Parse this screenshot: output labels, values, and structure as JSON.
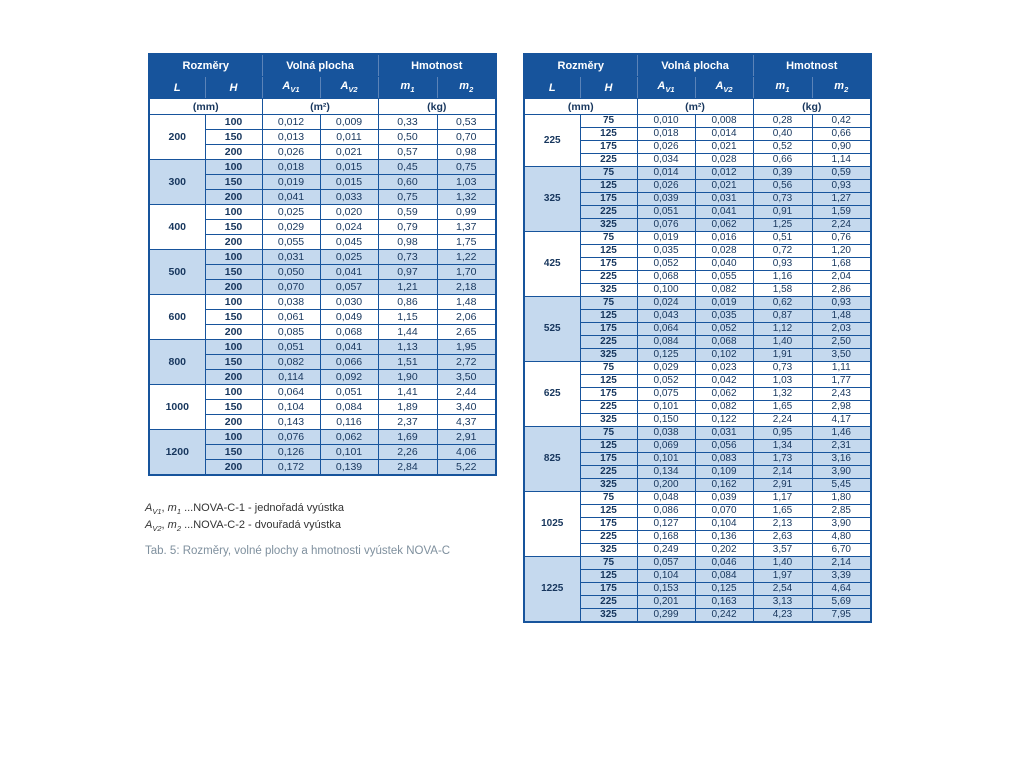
{
  "colors": {
    "header_bg": "#17549c",
    "header_text": "#ffffff",
    "alt_row_bg": "#c5d9ee",
    "data_text": "#17365d",
    "border": "#17549c"
  },
  "header": {
    "groups": [
      "Rozměry",
      "Volná plocha",
      "Hmotnost"
    ],
    "columns": [
      {
        "base": "L",
        "sub": ""
      },
      {
        "base": "H",
        "sub": ""
      },
      {
        "base": "A",
        "sub": "V1"
      },
      {
        "base": "A",
        "sub": "V2"
      },
      {
        "base": "m",
        "sub": "1"
      },
      {
        "base": "m",
        "sub": "2"
      }
    ],
    "units": [
      "(mm)",
      "(m²)",
      "(kg)"
    ]
  },
  "left_table": {
    "groups": [
      {
        "L": "200",
        "rows": [
          [
            "100",
            "0,012",
            "0,009",
            "0,33",
            "0,53"
          ],
          [
            "150",
            "0,013",
            "0,011",
            "0,50",
            "0,70"
          ],
          [
            "200",
            "0,026",
            "0,021",
            "0,57",
            "0,98"
          ]
        ]
      },
      {
        "L": "300",
        "rows": [
          [
            "100",
            "0,018",
            "0,015",
            "0,45",
            "0,75"
          ],
          [
            "150",
            "0,019",
            "0,015",
            "0,60",
            "1,03"
          ],
          [
            "200",
            "0,041",
            "0,033",
            "0,75",
            "1,32"
          ]
        ]
      },
      {
        "L": "400",
        "rows": [
          [
            "100",
            "0,025",
            "0,020",
            "0,59",
            "0,99"
          ],
          [
            "150",
            "0,029",
            "0,024",
            "0,79",
            "1,37"
          ],
          [
            "200",
            "0,055",
            "0,045",
            "0,98",
            "1,75"
          ]
        ]
      },
      {
        "L": "500",
        "rows": [
          [
            "100",
            "0,031",
            "0,025",
            "0,73",
            "1,22"
          ],
          [
            "150",
            "0,050",
            "0,041",
            "0,97",
            "1,70"
          ],
          [
            "200",
            "0,070",
            "0,057",
            "1,21",
            "2,18"
          ]
        ]
      },
      {
        "L": "600",
        "rows": [
          [
            "100",
            "0,038",
            "0,030",
            "0,86",
            "1,48"
          ],
          [
            "150",
            "0,061",
            "0,049",
            "1,15",
            "2,06"
          ],
          [
            "200",
            "0,085",
            "0,068",
            "1,44",
            "2,65"
          ]
        ]
      },
      {
        "L": "800",
        "rows": [
          [
            "100",
            "0,051",
            "0,041",
            "1,13",
            "1,95"
          ],
          [
            "150",
            "0,082",
            "0,066",
            "1,51",
            "2,72"
          ],
          [
            "200",
            "0,114",
            "0,092",
            "1,90",
            "3,50"
          ]
        ]
      },
      {
        "L": "1000",
        "rows": [
          [
            "100",
            "0,064",
            "0,051",
            "1,41",
            "2,44"
          ],
          [
            "150",
            "0,104",
            "0,084",
            "1,89",
            "3,40"
          ],
          [
            "200",
            "0,143",
            "0,116",
            "2,37",
            "4,37"
          ]
        ]
      },
      {
        "L": "1200",
        "rows": [
          [
            "100",
            "0,076",
            "0,062",
            "1,69",
            "2,91"
          ],
          [
            "150",
            "0,126",
            "0,101",
            "2,26",
            "4,06"
          ],
          [
            "200",
            "0,172",
            "0,139",
            "2,84",
            "5,22"
          ]
        ]
      }
    ]
  },
  "right_table": {
    "groups": [
      {
        "L": "225",
        "rows": [
          [
            "75",
            "0,010",
            "0,008",
            "0,28",
            "0,42"
          ],
          [
            "125",
            "0,018",
            "0,014",
            "0,40",
            "0,66"
          ],
          [
            "175",
            "0,026",
            "0,021",
            "0,52",
            "0,90"
          ],
          [
            "225",
            "0,034",
            "0,028",
            "0,66",
            "1,14"
          ]
        ]
      },
      {
        "L": "325",
        "rows": [
          [
            "75",
            "0,014",
            "0,012",
            "0,39",
            "0,59"
          ],
          [
            "125",
            "0,026",
            "0,021",
            "0,56",
            "0,93"
          ],
          [
            "175",
            "0,039",
            "0,031",
            "0,73",
            "1,27"
          ],
          [
            "225",
            "0,051",
            "0,041",
            "0,91",
            "1,59"
          ],
          [
            "325",
            "0,076",
            "0,062",
            "1,25",
            "2,24"
          ]
        ]
      },
      {
        "L": "425",
        "rows": [
          [
            "75",
            "0,019",
            "0,016",
            "0,51",
            "0,76"
          ],
          [
            "125",
            "0,035",
            "0,028",
            "0,72",
            "1,20"
          ],
          [
            "175",
            "0,052",
            "0,040",
            "0,93",
            "1,68"
          ],
          [
            "225",
            "0,068",
            "0,055",
            "1,16",
            "2,04"
          ],
          [
            "325",
            "0,100",
            "0,082",
            "1,58",
            "2,86"
          ]
        ]
      },
      {
        "L": "525",
        "rows": [
          [
            "75",
            "0,024",
            "0,019",
            "0,62",
            "0,93"
          ],
          [
            "125",
            "0,043",
            "0,035",
            "0,87",
            "1,48"
          ],
          [
            "175",
            "0,064",
            "0,052",
            "1,12",
            "2,03"
          ],
          [
            "225",
            "0,084",
            "0,068",
            "1,40",
            "2,50"
          ],
          [
            "325",
            "0,125",
            "0,102",
            "1,91",
            "3,50"
          ]
        ]
      },
      {
        "L": "625",
        "rows": [
          [
            "75",
            "0,029",
            "0,023",
            "0,73",
            "1,11"
          ],
          [
            "125",
            "0,052",
            "0,042",
            "1,03",
            "1,77"
          ],
          [
            "175",
            "0,075",
            "0,062",
            "1,32",
            "2,43"
          ],
          [
            "225",
            "0,101",
            "0,082",
            "1,65",
            "2,98"
          ],
          [
            "325",
            "0,150",
            "0,122",
            "2,24",
            "4,17"
          ]
        ]
      },
      {
        "L": "825",
        "rows": [
          [
            "75",
            "0,038",
            "0,031",
            "0,95",
            "1,46"
          ],
          [
            "125",
            "0,069",
            "0,056",
            "1,34",
            "2,31"
          ],
          [
            "175",
            "0,101",
            "0,083",
            "1,73",
            "3,16"
          ],
          [
            "225",
            "0,134",
            "0,109",
            "2,14",
            "3,90"
          ],
          [
            "325",
            "0,200",
            "0,162",
            "2,91",
            "5,45"
          ]
        ]
      },
      {
        "L": "1025",
        "rows": [
          [
            "75",
            "0,048",
            "0,039",
            "1,17",
            "1,80"
          ],
          [
            "125",
            "0,086",
            "0,070",
            "1,65",
            "2,85"
          ],
          [
            "175",
            "0,127",
            "0,104",
            "2,13",
            "3,90"
          ],
          [
            "225",
            "0,168",
            "0,136",
            "2,63",
            "4,80"
          ],
          [
            "325",
            "0,249",
            "0,202",
            "3,57",
            "6,70"
          ]
        ]
      },
      {
        "L": "1225",
        "rows": [
          [
            "75",
            "0,057",
            "0,046",
            "1,40",
            "2,14"
          ],
          [
            "125",
            "0,104",
            "0,084",
            "1,97",
            "3,39"
          ],
          [
            "175",
            "0,153",
            "0,125",
            "2,54",
            "4,64"
          ],
          [
            "225",
            "0,201",
            "0,163",
            "3,13",
            "5,69"
          ],
          [
            "325",
            "0,299",
            "0,242",
            "4,23",
            "7,95"
          ]
        ]
      }
    ]
  },
  "notes": [
    {
      "terms": [
        {
          "base": "A",
          "sub": "V1"
        },
        {
          "base": "m",
          "sub": "1"
        }
      ],
      "text": "...NOVA-C-1 - jednořadá vyústka"
    },
    {
      "terms": [
        {
          "base": "A",
          "sub": "V2"
        },
        {
          "base": "m",
          "sub": "2"
        }
      ],
      "text": "...NOVA-C-2 - dvouřadá vyústka"
    }
  ],
  "caption": "Tab. 5: Rozměry, volné plochy a hmotnosti vyústek NOVA-C"
}
